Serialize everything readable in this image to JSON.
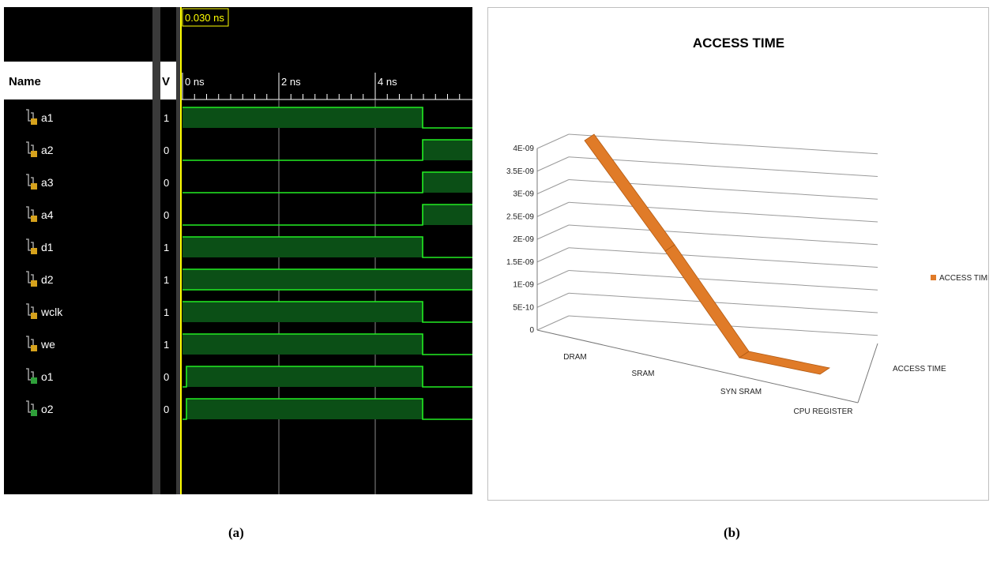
{
  "waveform": {
    "cursor_label": "0.030 ns",
    "name_header": "Name",
    "value_header": "V",
    "time_ticks": [
      "0 ns",
      "2 ns",
      "4 ns"
    ],
    "signals": [
      {
        "name": "a1",
        "value": "1",
        "kind": "input"
      },
      {
        "name": "a2",
        "value": "0",
        "kind": "input"
      },
      {
        "name": "a3",
        "value": "0",
        "kind": "input"
      },
      {
        "name": "a4",
        "value": "0",
        "kind": "input"
      },
      {
        "name": "d1",
        "value": "1",
        "kind": "input"
      },
      {
        "name": "d2",
        "value": "1",
        "kind": "input"
      },
      {
        "name": "wclk",
        "value": "1",
        "kind": "input"
      },
      {
        "name": "we",
        "value": "1",
        "kind": "input"
      },
      {
        "name": "o1",
        "value": "0",
        "kind": "output"
      },
      {
        "name": "o2",
        "value": "0",
        "kind": "output"
      }
    ],
    "colors": {
      "wave": "#22ee22",
      "fill": "#0b4f16",
      "cursor": "#ffff00",
      "grid": "#8a8a8a"
    }
  },
  "chart_data": {
    "type": "line",
    "title": "ACCESS TIME",
    "categories": [
      "DRAM",
      "SRAM",
      "SYN SRAM",
      "CPU REGISTER"
    ],
    "series": [
      {
        "name": "ACCESS TIME",
        "values": [
          4e-09,
          2e-09,
          1e-10,
          1e-10
        ],
        "color": "#e07b28"
      }
    ],
    "depth_label": "ACCESS TIME",
    "y_ticks": [
      "0",
      "5E-10",
      "1E-09",
      "1.5E-09",
      "2E-09",
      "2.5E-09",
      "3E-09",
      "3.5E-09",
      "4E-09"
    ],
    "ylim": [
      0,
      4e-09
    ],
    "legend_position": "right",
    "grid": true
  },
  "captions": {
    "a": "(a)",
    "b": "(b)"
  }
}
